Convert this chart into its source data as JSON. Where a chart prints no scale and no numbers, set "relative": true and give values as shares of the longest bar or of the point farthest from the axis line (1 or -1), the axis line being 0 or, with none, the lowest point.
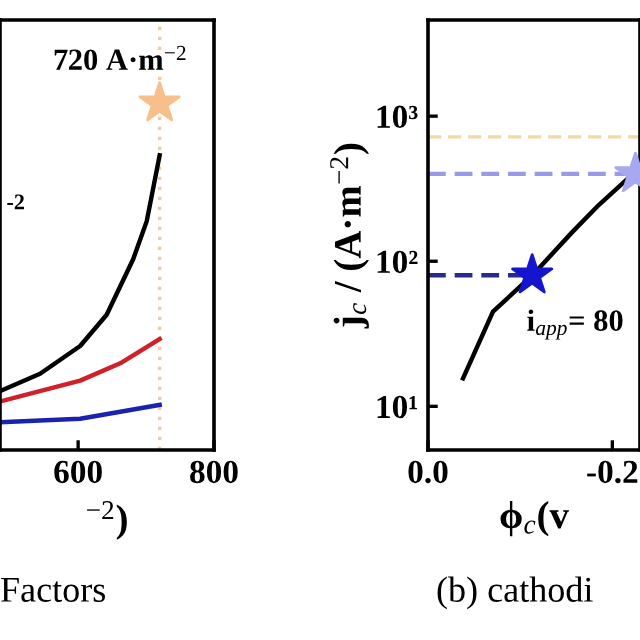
{
  "chart_data": [
    {
      "type": "line",
      "relative": true,
      "xlabel": "$^{−2}$)",
      "xlim": [
        485,
        800
      ],
      "xticks": [
        600,
        800
      ],
      "grid": false,
      "legend": false,
      "series": [
        {
          "color": "#000000",
          "x": [
            485,
            544,
            603,
            642,
            681,
            701,
            720
          ],
          "values": [
            0.17,
            0.22,
            0.3,
            0.39,
            0.55,
            0.66,
            0.85
          ]
        },
        {
          "color": "#d0202a",
          "x": [
            485,
            603,
            662,
            720
          ],
          "values": [
            0.14,
            0.2,
            0.25,
            0.32
          ]
        },
        {
          "color": "#1a22b0",
          "x": [
            485,
            603,
            720
          ],
          "values": [
            0.08,
            0.09,
            0.13
          ]
        },
        {
          "type": "scatter",
          "marker": "star",
          "color": "#f7c08a",
          "x": [
            720
          ],
          "values": [
            1
          ]
        }
      ],
      "ref_lines": [
        {
          "axis": "x",
          "value": 720,
          "color": "#f2c9a0",
          "line_style": "dotted"
        }
      ],
      "annotations": [
        {
          "text": "720 A·m$^{−2}$",
          "x": 720,
          "y": 1
        },
        "-2",
        "Factors"
      ]
    },
    {
      "type": "line",
      "log": "y",
      "xlabel": "ϕ$_{c}$(v",
      "ylabel": "j$_{c}$ / (A·m$^{−2}$)",
      "xlim": [
        0.0,
        -0.23
      ],
      "xticks": [
        {
          "value": 0.0,
          "label": "0.0"
        },
        {
          "value": -0.2,
          "label": "-0.2"
        }
      ],
      "ylim": [
        5,
        4600
      ],
      "yticks": [
        {
          "value": 10,
          "label": "10¹"
        },
        {
          "value": 100,
          "label": "10²"
        },
        {
          "value": 1000,
          "label": "10³"
        }
      ],
      "grid": false,
      "legend": false,
      "series": [
        {
          "color": "#000000",
          "x": [
            -0.038,
            -0.0705,
            -0.1136,
            -0.157,
            -0.1855,
            -0.2215
          ],
          "values": [
            15.6,
            44.9,
            80.5,
            160,
            245,
            395
          ]
        },
        {
          "color": "#2a2a8a",
          "line_style": "dashed",
          "x": [
            0.0,
            -0.113
          ],
          "values": [
            80,
            80
          ]
        },
        {
          "color": "#9a9ae8",
          "line_style": "dashed",
          "x": [
            0.0,
            -0.225
          ],
          "values": [
            400,
            400
          ]
        },
        {
          "type": "scatter",
          "marker": "star",
          "color": "#1515d0",
          "x": [
            -0.113
          ],
          "values": [
            80
          ]
        },
        {
          "type": "scatter",
          "marker": "star",
          "color": "#a8a8f0",
          "x": [
            -0.225
          ],
          "values": [
            400
          ]
        }
      ],
      "ref_lines": [
        {
          "axis": "y",
          "value": 720,
          "color": "#f2d9a8",
          "line_style": "dashed"
        }
      ],
      "annotations": [
        {
          "text": "i$_{app}$= 80",
          "x": -0.113,
          "y": 80
        },
        "(b) cathodi"
      ]
    }
  ]
}
